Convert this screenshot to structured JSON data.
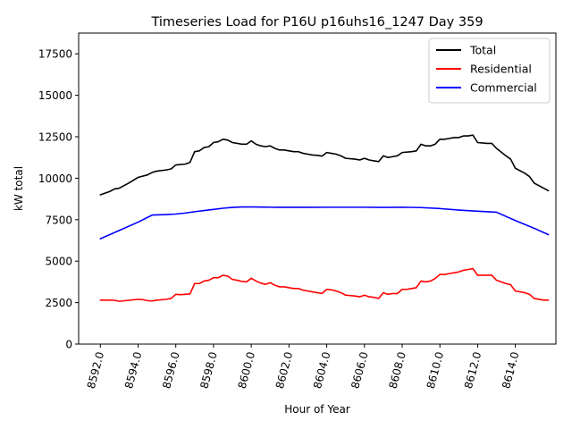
{
  "chart_data": {
    "type": "line",
    "title": "Timeseries Load for P16U p16uhs16_1247  Day 359",
    "xlabel": "Hour of Year",
    "ylabel": "kW total",
    "xlim": [
      8590.85,
      8616.15
    ],
    "ylim": [
      0,
      18750
    ],
    "x_ticks": [
      8592,
      8594,
      8596,
      8598,
      8600,
      8602,
      8604,
      8606,
      8608,
      8610,
      8612,
      8614
    ],
    "x_tick_labels": [
      "8592.0",
      "8594.0",
      "8596.0",
      "8598.0",
      "8600.0",
      "8602.0",
      "8604.0",
      "8606.0",
      "8608.0",
      "8610.0",
      "8612.0",
      "8614.0"
    ],
    "y_ticks": [
      0,
      2500,
      5000,
      7500,
      10000,
      12500,
      15000,
      17500
    ],
    "y_tick_labels": [
      "0",
      "2500",
      "5000",
      "7500",
      "10000",
      "12500",
      "15000",
      "17500"
    ],
    "grid": false,
    "legend_position": "top-right",
    "series": [
      {
        "name": "Total",
        "color": "#000000",
        "points": [
          [
            8592.0,
            9000
          ],
          [
            8592.5,
            9200
          ],
          [
            8592.75,
            9350
          ],
          [
            8593.0,
            9400
          ],
          [
            8593.5,
            9700
          ],
          [
            8594.0,
            10050
          ],
          [
            8594.5,
            10200
          ],
          [
            8594.75,
            10350
          ],
          [
            8595.0,
            10430
          ],
          [
            8595.5,
            10500
          ],
          [
            8595.75,
            10560
          ],
          [
            8596.0,
            10800
          ],
          [
            8596.5,
            10850
          ],
          [
            8596.75,
            10950
          ],
          [
            8597.0,
            11600
          ],
          [
            8597.25,
            11650
          ],
          [
            8597.5,
            11850
          ],
          [
            8597.75,
            11900
          ],
          [
            8598.0,
            12150
          ],
          [
            8598.25,
            12200
          ],
          [
            8598.5,
            12350
          ],
          [
            8598.75,
            12300
          ],
          [
            8599.0,
            12150
          ],
          [
            8599.5,
            12050
          ],
          [
            8599.75,
            12050
          ],
          [
            8600.0,
            12250
          ],
          [
            8600.25,
            12050
          ],
          [
            8600.5,
            11950
          ],
          [
            8600.75,
            11900
          ],
          [
            8601.0,
            11950
          ],
          [
            8601.25,
            11800
          ],
          [
            8601.5,
            11700
          ],
          [
            8601.75,
            11700
          ],
          [
            8602.0,
            11650
          ],
          [
            8602.25,
            11600
          ],
          [
            8602.5,
            11600
          ],
          [
            8602.75,
            11500
          ],
          [
            8603.0,
            11450
          ],
          [
            8603.25,
            11400
          ],
          [
            8603.5,
            11380
          ],
          [
            8603.75,
            11330
          ],
          [
            8604.0,
            11550
          ],
          [
            8604.25,
            11500
          ],
          [
            8604.5,
            11450
          ],
          [
            8604.75,
            11350
          ],
          [
            8605.0,
            11200
          ],
          [
            8605.5,
            11150
          ],
          [
            8605.75,
            11100
          ],
          [
            8606.0,
            11200
          ],
          [
            8606.25,
            11100
          ],
          [
            8606.5,
            11050
          ],
          [
            8606.75,
            11000
          ],
          [
            8607.0,
            11350
          ],
          [
            8607.25,
            11250
          ],
          [
            8607.5,
            11300
          ],
          [
            8607.75,
            11350
          ],
          [
            8608.0,
            11550
          ],
          [
            8608.5,
            11600
          ],
          [
            8608.75,
            11650
          ],
          [
            8609.0,
            12050
          ],
          [
            8609.25,
            11950
          ],
          [
            8609.5,
            11950
          ],
          [
            8609.75,
            12050
          ],
          [
            8610.0,
            12350
          ],
          [
            8610.25,
            12350
          ],
          [
            8610.5,
            12400
          ],
          [
            8610.75,
            12450
          ],
          [
            8611.0,
            12450
          ],
          [
            8611.25,
            12550
          ],
          [
            8611.5,
            12550
          ],
          [
            8611.75,
            12600
          ],
          [
            8612.0,
            12150
          ],
          [
            8612.5,
            12100
          ],
          [
            8612.75,
            12100
          ],
          [
            8613.0,
            11800
          ],
          [
            8613.5,
            11350
          ],
          [
            8613.75,
            11150
          ],
          [
            8614.0,
            10600
          ],
          [
            8614.5,
            10300
          ],
          [
            8614.75,
            10100
          ],
          [
            8615.0,
            9700
          ],
          [
            8615.5,
            9400
          ],
          [
            8615.75,
            9250
          ]
        ]
      },
      {
        "name": "Residential",
        "color": "#ff0000",
        "points": [
          [
            8592.0,
            2650
          ],
          [
            8592.5,
            2650
          ],
          [
            8592.75,
            2640
          ],
          [
            8593.0,
            2580
          ],
          [
            8593.5,
            2640
          ],
          [
            8594.0,
            2700
          ],
          [
            8594.25,
            2680
          ],
          [
            8594.5,
            2620
          ],
          [
            8594.75,
            2600
          ],
          [
            8595.0,
            2650
          ],
          [
            8595.5,
            2700
          ],
          [
            8595.75,
            2750
          ],
          [
            8596.0,
            3000
          ],
          [
            8596.25,
            2980
          ],
          [
            8596.5,
            3000
          ],
          [
            8596.75,
            3020
          ],
          [
            8597.0,
            3650
          ],
          [
            8597.25,
            3650
          ],
          [
            8597.5,
            3800
          ],
          [
            8597.75,
            3850
          ],
          [
            8598.0,
            4000
          ],
          [
            8598.25,
            4000
          ],
          [
            8598.5,
            4150
          ],
          [
            8598.75,
            4100
          ],
          [
            8599.0,
            3900
          ],
          [
            8599.25,
            3850
          ],
          [
            8599.5,
            3780
          ],
          [
            8599.75,
            3750
          ],
          [
            8600.0,
            3970
          ],
          [
            8600.25,
            3800
          ],
          [
            8600.5,
            3680
          ],
          [
            8600.75,
            3600
          ],
          [
            8601.0,
            3700
          ],
          [
            8601.25,
            3550
          ],
          [
            8601.5,
            3450
          ],
          [
            8601.75,
            3450
          ],
          [
            8602.0,
            3400
          ],
          [
            8602.25,
            3350
          ],
          [
            8602.5,
            3350
          ],
          [
            8602.75,
            3250
          ],
          [
            8603.0,
            3200
          ],
          [
            8603.25,
            3150
          ],
          [
            8603.5,
            3100
          ],
          [
            8603.75,
            3050
          ],
          [
            8604.0,
            3300
          ],
          [
            8604.25,
            3270
          ],
          [
            8604.5,
            3200
          ],
          [
            8604.75,
            3100
          ],
          [
            8605.0,
            2950
          ],
          [
            8605.5,
            2900
          ],
          [
            8605.75,
            2850
          ],
          [
            8606.0,
            2950
          ],
          [
            8606.25,
            2850
          ],
          [
            8606.5,
            2820
          ],
          [
            8606.75,
            2750
          ],
          [
            8607.0,
            3100
          ],
          [
            8607.25,
            3000
          ],
          [
            8607.5,
            3050
          ],
          [
            8607.75,
            3050
          ],
          [
            8608.0,
            3300
          ],
          [
            8608.25,
            3300
          ],
          [
            8608.5,
            3350
          ],
          [
            8608.75,
            3400
          ],
          [
            8609.0,
            3800
          ],
          [
            8609.25,
            3750
          ],
          [
            8609.5,
            3800
          ],
          [
            8609.75,
            3950
          ],
          [
            8610.0,
            4200
          ],
          [
            8610.25,
            4200
          ],
          [
            8610.5,
            4250
          ],
          [
            8610.75,
            4300
          ],
          [
            8611.0,
            4350
          ],
          [
            8611.25,
            4450
          ],
          [
            8611.5,
            4500
          ],
          [
            8611.75,
            4550
          ],
          [
            8612.0,
            4150
          ],
          [
            8612.5,
            4150
          ],
          [
            8612.75,
            4150
          ],
          [
            8613.0,
            3850
          ],
          [
            8613.5,
            3650
          ],
          [
            8613.75,
            3580
          ],
          [
            8614.0,
            3200
          ],
          [
            8614.5,
            3100
          ],
          [
            8614.75,
            3000
          ],
          [
            8615.0,
            2750
          ],
          [
            8615.5,
            2650
          ],
          [
            8615.75,
            2650
          ]
        ]
      },
      {
        "name": "Commercial",
        "color": "#0000ff",
        "points": [
          [
            8592.0,
            6350
          ],
          [
            8593.0,
            6850
          ],
          [
            8594.0,
            7350
          ],
          [
            8594.75,
            7780
          ],
          [
            8595.0,
            7790
          ],
          [
            8595.5,
            7810
          ],
          [
            8596.0,
            7840
          ],
          [
            8596.5,
            7900
          ],
          [
            8597.0,
            7980
          ],
          [
            8597.5,
            8050
          ],
          [
            8598.0,
            8120
          ],
          [
            8598.5,
            8190
          ],
          [
            8599.0,
            8240
          ],
          [
            8599.5,
            8265
          ],
          [
            8600.0,
            8270
          ],
          [
            8600.5,
            8260
          ],
          [
            8601.0,
            8250
          ],
          [
            8601.5,
            8245
          ],
          [
            8602.0,
            8245
          ],
          [
            8603.0,
            8245
          ],
          [
            8604.0,
            8250
          ],
          [
            8605.0,
            8250
          ],
          [
            8606.0,
            8250
          ],
          [
            8607.0,
            8240
          ],
          [
            8608.0,
            8250
          ],
          [
            8609.0,
            8230
          ],
          [
            8610.0,
            8170
          ],
          [
            8611.0,
            8080
          ],
          [
            8612.0,
            8010
          ],
          [
            8613.0,
            7950
          ],
          [
            8614.0,
            7450
          ],
          [
            8615.0,
            6980
          ],
          [
            8615.75,
            6600
          ]
        ]
      }
    ]
  }
}
